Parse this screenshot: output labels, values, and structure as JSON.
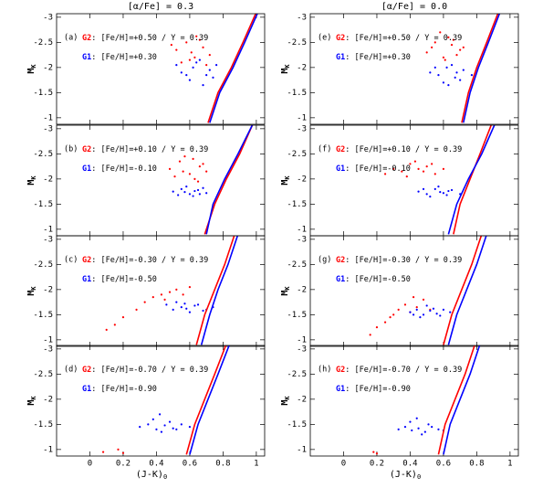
{
  "chart_data": [
    {
      "type": "scatter",
      "title": "[α/Fe] = 0.3",
      "panel_label": "(a)",
      "xlim": [
        -0.2,
        1.05
      ],
      "ylim": [
        -0.87,
        -3.07
      ],
      "xticks": [
        0,
        0.2,
        0.4,
        0.6,
        0.8,
        1
      ],
      "yticks": [
        -3,
        -2.5,
        -2,
        -1.5,
        -1
      ],
      "ylabel": "M",
      "ylabel_subscript": "K",
      "series": [
        {
          "name": "G2",
          "label": ": [Fe/H]=+0.50 / Y = 0.39",
          "color": "#ff0000",
          "x": [
            0.52,
            0.58,
            0.63,
            0.68,
            0.55,
            0.61,
            0.66,
            0.72,
            0.49,
            0.6,
            0.7,
            0.64
          ],
          "values": [
            -2.35,
            -2.5,
            -2.2,
            -2.4,
            -2.1,
            -2.3,
            -2.55,
            -2.25,
            -2.45,
            -2.15,
            -2.05,
            -2.62
          ]
        },
        {
          "name": "G1",
          "label": ": [Fe/H]=+0.30",
          "color": "#0000ff",
          "x": [
            0.55,
            0.62,
            0.7,
            0.76,
            0.6,
            0.66,
            0.72,
            0.52,
            0.68,
            0.74,
            0.64,
            0.58
          ],
          "values": [
            -1.9,
            -2.0,
            -1.85,
            -2.05,
            -1.75,
            -2.15,
            -1.95,
            -2.05,
            -1.65,
            -1.8,
            -2.1,
            -1.85
          ]
        }
      ],
      "lines": [
        {
          "color": "#ff0000",
          "x": [
            0.71,
            0.77,
            0.85,
            0.92,
            1.0
          ],
          "values": [
            -0.9,
            -1.5,
            -2,
            -2.5,
            -3.1
          ]
        },
        {
          "color": "#0000ff",
          "x": [
            0.72,
            0.78,
            0.86,
            0.93,
            1.01
          ],
          "values": [
            -0.9,
            -1.5,
            -2,
            -2.5,
            -3.1
          ]
        }
      ]
    },
    {
      "type": "scatter",
      "panel_label": "(b)",
      "xlim": [
        -0.2,
        1.05
      ],
      "ylim": [
        -0.87,
        -3.07
      ],
      "xticks": [
        0,
        0.2,
        0.4,
        0.6,
        0.8,
        1
      ],
      "yticks": [
        -3,
        -2.5,
        -2,
        -1.5,
        -1
      ],
      "ylabel": "M",
      "ylabel_subscript": "K",
      "series": [
        {
          "name": "G2",
          "label": ": [Fe/H]=+0.10 / Y = 0.39",
          "color": "#ff0000",
          "x": [
            0.48,
            0.54,
            0.6,
            0.66,
            0.7,
            0.57,
            0.63,
            0.51,
            0.68,
            0.62,
            0.56,
            0.65
          ],
          "values": [
            -2.2,
            -2.35,
            -2.1,
            -2.25,
            -2.15,
            -2.45,
            -2.0,
            -2.05,
            -2.3,
            -2.4,
            -2.15,
            -1.95
          ]
        },
        {
          "name": "G1",
          "label": ": [Fe/H]=-0.10",
          "color": "#0000ff",
          "x": [
            0.5,
            0.55,
            0.6,
            0.65,
            0.7,
            0.53,
            0.58,
            0.63,
            0.68,
            0.57,
            0.62,
            0.66
          ],
          "values": [
            -1.75,
            -1.8,
            -1.7,
            -1.78,
            -1.72,
            -1.68,
            -1.85,
            -1.76,
            -1.82,
            -1.74,
            -1.66,
            -1.7
          ]
        }
      ],
      "lines": [
        {
          "color": "#ff0000",
          "x": [
            0.69,
            0.75,
            0.82,
            0.9,
            0.98
          ],
          "values": [
            -0.9,
            -1.5,
            -2,
            -2.5,
            -3.1
          ]
        },
        {
          "color": "#0000ff",
          "x": [
            0.7,
            0.74,
            0.81,
            0.89,
            0.98
          ],
          "values": [
            -0.9,
            -1.5,
            -2,
            -2.5,
            -3.1
          ]
        }
      ]
    },
    {
      "type": "scatter",
      "panel_label": "(c)",
      "xlim": [
        -0.2,
        1.05
      ],
      "ylim": [
        -0.87,
        -3.07
      ],
      "xticks": [
        0,
        0.2,
        0.4,
        0.6,
        0.8,
        1
      ],
      "yticks": [
        -3,
        -2.5,
        -2,
        -1.5,
        -1
      ],
      "ylabel": "M",
      "ylabel_subscript": "K",
      "series": [
        {
          "name": "G2",
          "label": ": [Fe/H]=-0.30 / Y = 0.39",
          "color": "#ff0000",
          "x": [
            0.1,
            0.15,
            0.2,
            0.28,
            0.33,
            0.38,
            0.43,
            0.48,
            0.52,
            0.56,
            0.6,
            0.45
          ],
          "values": [
            -1.2,
            -1.3,
            -1.45,
            -1.6,
            -1.75,
            -1.85,
            -1.9,
            -1.95,
            -2.0,
            -1.9,
            -2.05,
            -1.8
          ]
        },
        {
          "name": "G1",
          "label": ": [Fe/H]=-0.50",
          "color": "#0000ff",
          "x": [
            0.46,
            0.5,
            0.55,
            0.6,
            0.65,
            0.7,
            0.74,
            0.52,
            0.58,
            0.63,
            0.68,
            0.57
          ],
          "values": [
            -1.7,
            -1.6,
            -1.65,
            -1.55,
            -1.7,
            -1.6,
            -1.65,
            -1.75,
            -1.62,
            -1.68,
            -1.58,
            -1.72
          ]
        }
      ],
      "lines": [
        {
          "color": "#ff0000",
          "x": [
            0.64,
            0.69,
            0.75,
            0.81,
            0.87
          ],
          "values": [
            -0.9,
            -1.5,
            -2,
            -2.5,
            -3.1
          ]
        },
        {
          "color": "#0000ff",
          "x": [
            0.67,
            0.72,
            0.77,
            0.83,
            0.89
          ],
          "values": [
            -0.9,
            -1.5,
            -2,
            -2.5,
            -3.1
          ]
        }
      ]
    },
    {
      "type": "scatter",
      "panel_label": "(d)",
      "xlim": [
        -0.2,
        1.05
      ],
      "ylim": [
        -0.87,
        -3.07
      ],
      "xticks": [
        0,
        0.2,
        0.4,
        0.6,
        0.8,
        1
      ],
      "yticks": [
        -3,
        -2.5,
        -2,
        -1.5,
        -1
      ],
      "ylabel": "M",
      "ylabel_subscript": "K",
      "xlabel": "(J-K)",
      "xlabel_subscript": "0",
      "show_xticklabels": true,
      "series": [
        {
          "name": "G2",
          "label": ": [Fe/H]=-0.70 / Y = 0.39",
          "color": "#ff0000",
          "x": [
            0.08,
            0.17,
            0.2
          ],
          "values": [
            -0.95,
            -1.0,
            -0.93
          ]
        },
        {
          "name": "G1",
          "label": ": [Fe/H]=-0.90",
          "color": "#0000ff",
          "x": [
            0.3,
            0.35,
            0.4,
            0.45,
            0.5,
            0.55,
            0.6,
            0.38,
            0.43,
            0.48,
            0.52,
            0.42
          ],
          "values": [
            -1.45,
            -1.5,
            -1.4,
            -1.48,
            -1.42,
            -1.5,
            -1.45,
            -1.6,
            -1.35,
            -1.55,
            -1.4,
            -1.7
          ]
        }
      ],
      "lines": [
        {
          "color": "#ff0000",
          "x": [
            0.58,
            0.63,
            0.69,
            0.75,
            0.82
          ],
          "values": [
            -0.9,
            -1.5,
            -2,
            -2.5,
            -3.1
          ]
        },
        {
          "color": "#0000ff",
          "x": [
            0.6,
            0.65,
            0.71,
            0.77,
            0.84
          ],
          "values": [
            -0.9,
            -1.5,
            -2,
            -2.5,
            -3.1
          ]
        }
      ]
    },
    {
      "type": "scatter",
      "title": "[α/Fe] = 0.0",
      "panel_label": "(e)",
      "xlim": [
        -0.2,
        1.05
      ],
      "ylim": [
        -0.87,
        -3.07
      ],
      "xticks": [
        0,
        0.2,
        0.4,
        0.6,
        0.8,
        1
      ],
      "yticks": [
        -3,
        -2.5,
        -2,
        -1.5,
        -1
      ],
      "ylabel": "M",
      "ylabel_subscript": "K",
      "series": [
        {
          "name": "G2",
          "label": ": [Fe/H]=+0.50 / Y = 0.39",
          "color": "#ff0000",
          "x": [
            0.5,
            0.55,
            0.6,
            0.65,
            0.7,
            0.58,
            0.63,
            0.68,
            0.53,
            0.61,
            0.66,
            0.72
          ],
          "values": [
            -2.3,
            -2.5,
            -2.2,
            -2.45,
            -2.35,
            -2.7,
            -2.6,
            -2.25,
            -2.4,
            -2.15,
            -2.55,
            -2.4
          ]
        },
        {
          "name": "G1",
          "label": ": [Fe/H]=+0.30",
          "color": "#0000ff",
          "x": [
            0.52,
            0.57,
            0.62,
            0.67,
            0.72,
            0.77,
            0.6,
            0.65,
            0.7,
            0.55,
            0.63,
            0.68
          ],
          "values": [
            -1.9,
            -1.85,
            -2.0,
            -1.8,
            -1.95,
            -1.85,
            -1.7,
            -2.05,
            -1.75,
            -2.0,
            -1.65,
            -1.9
          ]
        }
      ],
      "lines": [
        {
          "color": "#ff0000",
          "x": [
            0.71,
            0.75,
            0.8,
            0.86,
            0.93
          ],
          "values": [
            -0.9,
            -1.5,
            -2,
            -2.5,
            -3.1
          ]
        },
        {
          "color": "#0000ff",
          "x": [
            0.72,
            0.76,
            0.81,
            0.87,
            0.94
          ],
          "values": [
            -0.9,
            -1.5,
            -2,
            -2.5,
            -3.1
          ]
        }
      ]
    },
    {
      "type": "scatter",
      "panel_label": "(f)",
      "xlim": [
        -0.2,
        1.05
      ],
      "ylim": [
        -0.87,
        -3.07
      ],
      "xticks": [
        0,
        0.2,
        0.4,
        0.6,
        0.8,
        1
      ],
      "yticks": [
        -3,
        -2.5,
        -2,
        -1.5,
        -1
      ],
      "ylabel": "M",
      "ylabel_subscript": "K",
      "series": [
        {
          "name": "G2",
          "label": ": [Fe/H]=+0.10 / Y = 0.39",
          "color": "#ff0000",
          "x": [
            0.25,
            0.3,
            0.35,
            0.4,
            0.45,
            0.5,
            0.55,
            0.6,
            0.38,
            0.43,
            0.48,
            0.53
          ],
          "values": [
            -2.1,
            -2.2,
            -2.15,
            -2.3,
            -2.2,
            -2.25,
            -2.1,
            -2.2,
            -2.05,
            -2.35,
            -2.15,
            -2.3
          ]
        },
        {
          "name": "G1",
          "label": ": [Fe/H]=-0.10",
          "color": "#0000ff",
          "x": [
            0.45,
            0.5,
            0.55,
            0.6,
            0.65,
            0.7,
            0.52,
            0.57,
            0.62,
            0.48,
            0.58,
            0.63
          ],
          "values": [
            -1.75,
            -1.7,
            -1.8,
            -1.72,
            -1.78,
            -1.7,
            -1.65,
            -1.85,
            -1.68,
            -1.8,
            -1.74,
            -1.76
          ]
        }
      ],
      "lines": [
        {
          "color": "#ff0000",
          "x": [
            0.66,
            0.7,
            0.76,
            0.82,
            0.89
          ],
          "values": [
            -0.9,
            -1.5,
            -2,
            -2.5,
            -3.1
          ]
        },
        {
          "color": "#0000ff",
          "x": [
            0.63,
            0.68,
            0.75,
            0.83,
            0.91
          ],
          "values": [
            -0.9,
            -1.5,
            -2,
            -2.5,
            -3.1
          ]
        }
      ]
    },
    {
      "type": "scatter",
      "panel_label": "(g)",
      "xlim": [
        -0.2,
        1.05
      ],
      "ylim": [
        -0.87,
        -3.07
      ],
      "xticks": [
        0,
        0.2,
        0.4,
        0.6,
        0.8,
        1
      ],
      "yticks": [
        -3,
        -2.5,
        -2,
        -1.5,
        -1
      ],
      "ylabel": "M",
      "ylabel_subscript": "K",
      "series": [
        {
          "name": "G2",
          "label": ": [Fe/H]=-0.30 / Y = 0.39",
          "color": "#ff0000",
          "x": [
            0.16,
            0.2,
            0.25,
            0.3,
            0.33,
            0.37,
            0.4,
            0.44,
            0.48,
            0.52,
            0.28,
            0.42
          ],
          "values": [
            -1.1,
            -1.25,
            -1.35,
            -1.5,
            -1.6,
            -1.7,
            -1.55,
            -1.65,
            -1.8,
            -1.6,
            -1.45,
            -1.85
          ]
        },
        {
          "name": "G1",
          "label": ": [Fe/H]=-0.50",
          "color": "#0000ff",
          "x": [
            0.4,
            0.44,
            0.48,
            0.52,
            0.56,
            0.6,
            0.64,
            0.46,
            0.5,
            0.54,
            0.58,
            0.42
          ],
          "values": [
            -1.55,
            -1.6,
            -1.5,
            -1.58,
            -1.52,
            -1.6,
            -1.55,
            -1.45,
            -1.68,
            -1.62,
            -1.48,
            -1.5
          ]
        }
      ],
      "lines": [
        {
          "color": "#ff0000",
          "x": [
            0.6,
            0.65,
            0.71,
            0.77,
            0.83
          ],
          "values": [
            -0.9,
            -1.5,
            -2,
            -2.5,
            -3.1
          ]
        },
        {
          "color": "#0000ff",
          "x": [
            0.63,
            0.68,
            0.74,
            0.8,
            0.86
          ],
          "values": [
            -0.9,
            -1.5,
            -2,
            -2.5,
            -3.1
          ]
        }
      ]
    },
    {
      "type": "scatter",
      "panel_label": "(h)",
      "xlim": [
        -0.2,
        1.05
      ],
      "ylim": [
        -0.87,
        -3.07
      ],
      "xticks": [
        0,
        0.2,
        0.4,
        0.6,
        0.8,
        1
      ],
      "yticks": [
        -3,
        -2.5,
        -2,
        -1.5,
        -1
      ],
      "ylabel": "M",
      "ylabel_subscript": "K",
      "xlabel": "(J-K)",
      "xlabel_subscript": "0",
      "show_xticklabels": true,
      "series": [
        {
          "name": "G2",
          "label": ": [Fe/H]=-0.70 / Y = 0.39",
          "color": "#ff0000",
          "x": [
            0.18,
            0.2
          ],
          "values": [
            -0.95,
            -0.92
          ]
        },
        {
          "name": "G1",
          "label": ": [Fe/H]=-0.90",
          "color": "#0000ff",
          "x": [
            0.33,
            0.37,
            0.41,
            0.45,
            0.49,
            0.53,
            0.57,
            0.6,
            0.4,
            0.47,
            0.51,
            0.44
          ],
          "values": [
            -1.4,
            -1.45,
            -1.38,
            -1.42,
            -1.35,
            -1.45,
            -1.4,
            -1.38,
            -1.55,
            -1.3,
            -1.5,
            -1.62
          ]
        }
      ],
      "lines": [
        {
          "color": "#ff0000",
          "x": [
            0.57,
            0.61,
            0.67,
            0.73,
            0.79
          ],
          "values": [
            -0.9,
            -1.5,
            -2,
            -2.5,
            -3.1
          ]
        },
        {
          "color": "#0000ff",
          "x": [
            0.6,
            0.64,
            0.7,
            0.76,
            0.82
          ],
          "values": [
            -0.9,
            -1.5,
            -2,
            -2.5,
            -3.1
          ]
        }
      ]
    }
  ]
}
